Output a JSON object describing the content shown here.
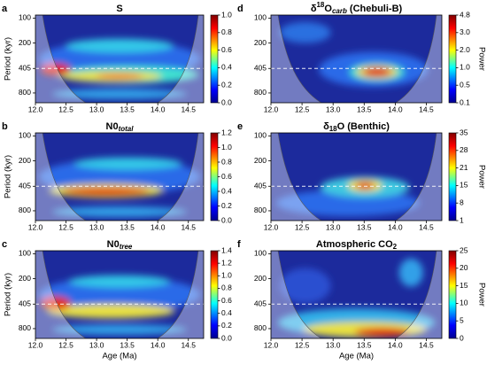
{
  "chart_data": [
    {
      "type": "wavelet",
      "panel": "a",
      "title": [
        {
          "text": "S"
        }
      ],
      "ylabel": "Period (kyr)",
      "xlim": [
        12.0,
        14.75
      ],
      "xticks": [
        {
          "value": 12.0,
          "label": "12.0"
        },
        12.5,
        {
          "value": 13.0,
          "label": "13.0"
        },
        13.5,
        {
          "value": 14.0,
          "label": "14.0"
        },
        14.5
      ],
      "yscale": "log",
      "yreverse": true,
      "ylim": [
        92,
        1050
      ],
      "yticks": [
        100,
        200,
        405,
        800
      ],
      "hline": 405,
      "colorbar_scale": "linear",
      "cblim": [
        0,
        1.0
      ],
      "cbticks": [
        {
          "value": 0,
          "label": "0.0"
        },
        0.2,
        0.4,
        0.6,
        0.8,
        {
          "value": 1,
          "label": "1.0"
        }
      ]
    },
    {
      "type": "wavelet",
      "panel": "b",
      "title": [
        {
          "text": "N0"
        },
        {
          "text": "total",
          "style": "sub-italic"
        }
      ],
      "ylabel": "Period (kyr)",
      "xlim": [
        12.0,
        14.75
      ],
      "xticks": [
        {
          "value": 12.0,
          "label": "12.0"
        },
        12.5,
        {
          "value": 13.0,
          "label": "13.0"
        },
        13.5,
        {
          "value": 14.0,
          "label": "14.0"
        },
        14.5
      ],
      "yscale": "log",
      "yreverse": true,
      "ylim": [
        92,
        1050
      ],
      "yticks": [
        100,
        200,
        405,
        800
      ],
      "hline": 405,
      "colorbar_scale": "linear",
      "cblim": [
        0,
        1.2
      ],
      "cbticks": [
        {
          "value": 0,
          "label": "0.0"
        },
        0.2,
        0.4,
        0.6,
        0.8,
        {
          "value": 1,
          "label": "1.0"
        },
        1.2
      ]
    },
    {
      "type": "wavelet",
      "panel": "c",
      "title": [
        {
          "text": "N0"
        },
        {
          "text": "tree",
          "style": "sub-italic"
        }
      ],
      "ylabel": "Period (kyr)",
      "xlabel": "Age (Ma)",
      "xlim": [
        12.0,
        14.75
      ],
      "xticks": [
        {
          "value": 12.0,
          "label": "12.0"
        },
        12.5,
        {
          "value": 13.0,
          "label": "13.0"
        },
        13.5,
        {
          "value": 14.0,
          "label": "14.0"
        },
        14.5
      ],
      "yscale": "log",
      "yreverse": true,
      "ylim": [
        92,
        1050
      ],
      "yticks": [
        100,
        200,
        405,
        800
      ],
      "hline": 405,
      "colorbar_scale": "linear",
      "cblim": [
        0,
        1.4
      ],
      "cbticks": [
        {
          "value": 0,
          "label": "0.0"
        },
        0.2,
        0.4,
        0.6,
        0.8,
        {
          "value": 1,
          "label": "1.0"
        },
        1.2,
        1.4
      ]
    },
    {
      "type": "wavelet",
      "panel": "d",
      "title": [
        {
          "text": "δ"
        },
        {
          "text": "18",
          "style": "sup"
        },
        {
          "text": "O"
        },
        {
          "text": "carb",
          "style": "sub-italic"
        },
        {
          "text": " (Chebuli-B)"
        }
      ],
      "cblabel": "Power",
      "xlim": [
        12.0,
        14.75
      ],
      "xticks": [
        {
          "value": 12.0,
          "label": "12.0"
        },
        12.5,
        {
          "value": 13.0,
          "label": "13.0"
        },
        13.5,
        {
          "value": 14.0,
          "label": "14.0"
        },
        14.5
      ],
      "yscale": "log",
      "yreverse": true,
      "ylim": [
        92,
        1050
      ],
      "yticks": [
        100,
        200,
        405,
        800
      ],
      "hline": 405,
      "colorbar_scale": "levels",
      "cbticks": [
        0.1,
        0.5,
        {
          "value": 1,
          "label": "1.0"
        },
        {
          "value": 2,
          "label": "2.0"
        },
        {
          "value": 3,
          "label": "3.0"
        },
        4.8
      ]
    },
    {
      "type": "wavelet",
      "panel": "e",
      "title": [
        {
          "text": "δ"
        },
        {
          "text": "18",
          "style": "sub"
        },
        {
          "text": "O (Benthic)"
        }
      ],
      "cblabel": "Power",
      "xlim": [
        12.0,
        14.75
      ],
      "xticks": [
        {
          "value": 12.0,
          "label": "12.0"
        },
        12.5,
        {
          "value": 13.0,
          "label": "13.0"
        },
        13.5,
        {
          "value": 14.0,
          "label": "14.0"
        },
        14.5
      ],
      "yscale": "log",
      "yreverse": true,
      "ylim": [
        92,
        1050
      ],
      "yticks": [
        100,
        200,
        405,
        800
      ],
      "hline": 405,
      "colorbar_scale": "levels",
      "cbticks": [
        1,
        8,
        15,
        21,
        28,
        35
      ]
    },
    {
      "type": "wavelet",
      "panel": "f",
      "title": [
        {
          "text": "Atmospheric CO"
        },
        {
          "text": "2",
          "style": "sub"
        }
      ],
      "cblabel": "Power",
      "xlabel": "Age (Ma)",
      "xlim": [
        12.0,
        14.75
      ],
      "xticks": [
        {
          "value": 12.0,
          "label": "12.0"
        },
        12.5,
        {
          "value": 13.0,
          "label": "13.0"
        },
        13.5,
        {
          "value": 14.0,
          "label": "14.0"
        },
        14.5
      ],
      "yscale": "log",
      "yreverse": true,
      "ylim": [
        92,
        1050
      ],
      "yticks": [
        100,
        200,
        405,
        800
      ],
      "hline": 405,
      "colorbar_scale": "linear",
      "cblim": [
        0,
        25
      ],
      "cbticks": [
        0,
        5,
        10,
        15,
        20,
        25
      ]
    }
  ]
}
